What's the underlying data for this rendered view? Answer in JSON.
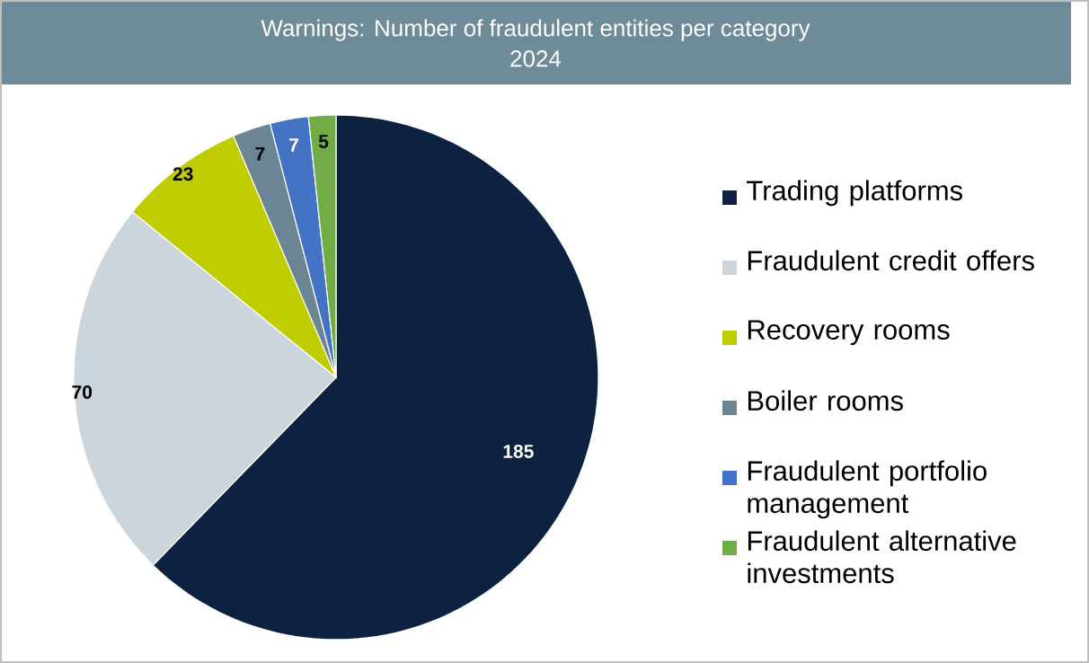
{
  "chart_data": {
    "type": "pie",
    "title": "Warnings: Number of fraudulent entities per category",
    "subtitle": "2024",
    "categories": [
      "Trading platforms",
      "Fraudulent credit offers",
      "Recovery rooms",
      "Boiler rooms",
      "Fraudulent portfolio management",
      "Fraudulent alternative investments"
    ],
    "values": [
      185,
      70,
      23,
      7,
      7,
      5
    ],
    "colors": [
      "#0d2240",
      "#cdd5dc",
      "#bfcc00",
      "#6b8595",
      "#4472c4",
      "#70ad47"
    ],
    "data_labels": true,
    "legend": "right"
  }
}
